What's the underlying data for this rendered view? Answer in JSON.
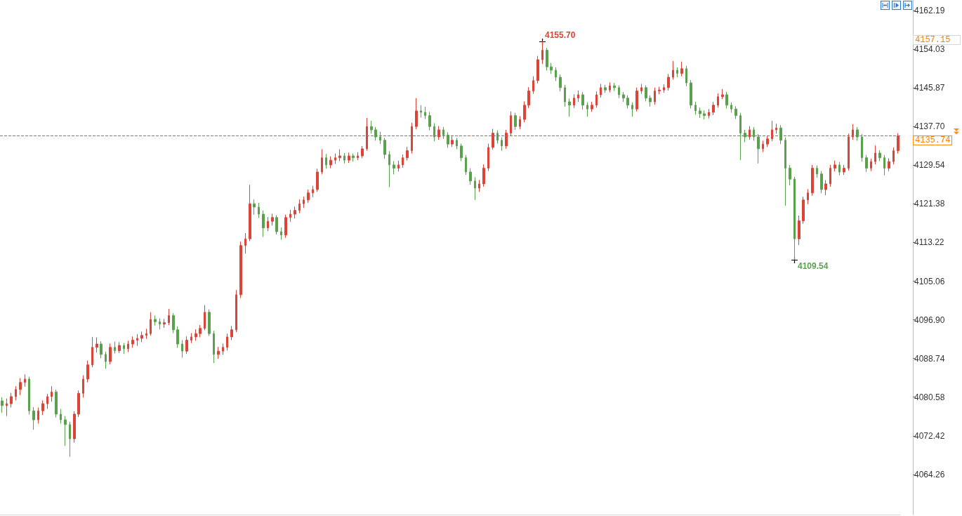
{
  "chart_data": {
    "type": "candlestick",
    "categories": [
      null,
      null,
      null,
      null,
      null,
      null,
      null,
      null,
      null,
      null,
      null,
      null,
      null,
      null,
      null,
      null,
      null,
      null,
      null,
      null,
      null,
      null,
      null,
      null,
      null,
      null,
      null,
      null,
      null,
      null,
      null,
      null,
      null,
      null,
      null,
      null,
      null,
      null,
      null,
      null,
      null,
      null,
      null,
      null,
      null,
      null,
      null,
      null,
      null,
      null,
      null,
      null,
      null,
      null,
      null,
      null,
      null,
      null,
      null,
      null,
      null,
      null,
      null,
      null,
      null,
      null,
      null,
      null,
      null,
      null,
      null,
      null,
      null,
      null,
      null,
      null,
      null,
      null,
      null,
      null,
      null,
      null,
      null,
      null,
      null,
      null,
      null,
      null,
      null,
      null,
      null,
      null,
      null,
      null,
      null,
      null,
      null,
      null,
      null,
      null,
      null,
      null,
      null,
      null,
      null,
      null,
      null,
      null,
      null,
      null,
      null,
      null,
      null,
      null,
      null,
      null,
      null,
      null,
      null,
      null,
      null,
      null,
      null,
      null,
      null,
      null,
      null,
      null,
      null,
      null,
      null,
      null,
      null,
      null,
      null,
      null,
      null,
      null,
      null,
      null,
      null,
      null,
      null,
      null,
      null,
      null,
      null,
      null,
      null,
      null,
      null,
      null,
      null,
      null,
      null,
      null,
      null,
      null,
      null,
      null,
      null,
      null,
      null,
      null,
      null,
      null,
      null,
      null,
      null,
      null,
      null,
      null,
      null,
      null,
      null,
      null,
      null,
      null,
      null,
      null,
      null,
      null,
      null,
      null,
      null,
      null,
      null,
      null,
      null,
      null,
      null,
      null,
      null,
      null,
      null,
      null,
      null,
      null,
      null,
      null
    ],
    "ohlc": [
      [
        4079.8,
        4080.6,
        4077.3,
        4078.8
      ],
      [
        4078.8,
        4080.3,
        4076.6,
        4079.2
      ],
      [
        4079.2,
        4081.5,
        4078.4,
        4080.7
      ],
      [
        4080.7,
        4082.9,
        4079.9,
        4082.2
      ],
      [
        4082.2,
        4084.6,
        4081.0,
        4083.7
      ],
      [
        4083.7,
        4085.4,
        4082.8,
        4084.4
      ],
      [
        4084.4,
        4084.9,
        4076.9,
        4077.7
      ],
      [
        4077.7,
        4078.5,
        4073.7,
        4075.8
      ],
      [
        4075.8,
        4078.4,
        4075.0,
        4077.7
      ],
      [
        4077.7,
        4079.9,
        4076.8,
        4079.2
      ],
      [
        4079.2,
        4081.3,
        4078.1,
        4080.7
      ],
      [
        4080.7,
        4082.9,
        4079.6,
        4081.7
      ],
      [
        4081.7,
        4082.2,
        4076.3,
        4077.0
      ],
      [
        4077.0,
        4078.1,
        4075.0,
        4075.8
      ],
      [
        4075.8,
        4076.6,
        4070.3,
        4074.8
      ],
      [
        4074.8,
        4075.4,
        4068.0,
        4071.8
      ],
      [
        4071.8,
        4077.6,
        4071.0,
        4077.0
      ],
      [
        4077.0,
        4082.0,
        4076.4,
        4081.4
      ],
      [
        4081.4,
        4085.2,
        4080.5,
        4084.4
      ],
      [
        4084.4,
        4088.3,
        4083.7,
        4087.4
      ],
      [
        4087.4,
        4093.3,
        4086.9,
        4091.1
      ],
      [
        4091.1,
        4093.2,
        4090.0,
        4091.8
      ],
      [
        4091.8,
        4092.4,
        4088.8,
        4089.6
      ],
      [
        4089.6,
        4090.2,
        4086.6,
        4088.1
      ],
      [
        4088.1,
        4091.9,
        4087.5,
        4091.1
      ],
      [
        4091.1,
        4092.3,
        4089.8,
        4090.4
      ],
      [
        4090.4,
        4092.2,
        4089.9,
        4091.5
      ],
      [
        4091.5,
        4092.0,
        4089.7,
        4090.8
      ],
      [
        4090.8,
        4092.5,
        4090.1,
        4091.8
      ],
      [
        4091.8,
        4093.4,
        4091.0,
        4092.6
      ],
      [
        4092.6,
        4093.9,
        4091.4,
        4093.0
      ],
      [
        4093.0,
        4094.4,
        4092.2,
        4093.6
      ],
      [
        4093.6,
        4095.0,
        4092.9,
        4094.0
      ],
      [
        4094.0,
        4098.5,
        4093.6,
        4097.0
      ],
      [
        4097.0,
        4097.8,
        4095.7,
        4096.5
      ],
      [
        4096.5,
        4097.2,
        4094.9,
        4096.0
      ],
      [
        4096.0,
        4097.1,
        4095.2,
        4096.3
      ],
      [
        4096.3,
        4099.2,
        4095.8,
        4097.8
      ],
      [
        4097.8,
        4098.3,
        4094.1,
        4094.8
      ],
      [
        4094.8,
        4095.5,
        4091.0,
        4091.8
      ],
      [
        4091.8,
        4092.6,
        4088.9,
        4090.3
      ],
      [
        4090.3,
        4093.4,
        4089.7,
        4092.6
      ],
      [
        4092.6,
        4094.1,
        4092.0,
        4093.3
      ],
      [
        4093.3,
        4094.9,
        4092.5,
        4094.0
      ],
      [
        4094.0,
        4095.8,
        4093.2,
        4095.1
      ],
      [
        4095.1,
        4100.0,
        4094.7,
        4098.5
      ],
      [
        4098.5,
        4099.1,
        4093.5,
        4094.0
      ],
      [
        4094.0,
        4094.6,
        4087.8,
        4089.6
      ],
      [
        4089.6,
        4091.2,
        4088.7,
        4090.3
      ],
      [
        4090.3,
        4091.9,
        4089.5,
        4091.1
      ],
      [
        4091.1,
        4094.0,
        4090.4,
        4093.3
      ],
      [
        4093.3,
        4095.6,
        4092.6,
        4094.8
      ],
      [
        4094.8,
        4103.2,
        4094.3,
        4102.2
      ],
      [
        4102.2,
        4113.4,
        4101.5,
        4112.6
      ],
      [
        4112.6,
        4115.2,
        4110.9,
        4114.0
      ],
      [
        4114.0,
        4125.4,
        4113.5,
        4121.4
      ],
      [
        4121.4,
        4122.3,
        4119.1,
        4120.7
      ],
      [
        4120.7,
        4121.6,
        4118.4,
        4119.2
      ],
      [
        4119.2,
        4120.0,
        4114.4,
        4116.3
      ],
      [
        4116.3,
        4118.6,
        4115.6,
        4117.7
      ],
      [
        4117.7,
        4119.3,
        4116.8,
        4118.5
      ],
      [
        4118.5,
        4119.0,
        4114.9,
        4115.5
      ],
      [
        4115.5,
        4116.4,
        4113.8,
        4114.8
      ],
      [
        4114.8,
        4119.1,
        4114.2,
        4118.5
      ],
      [
        4118.5,
        4120.1,
        4117.6,
        4119.2
      ],
      [
        4119.2,
        4120.8,
        4118.3,
        4120.0
      ],
      [
        4120.0,
        4122.3,
        4119.4,
        4121.4
      ],
      [
        4121.4,
        4122.9,
        4120.5,
        4122.2
      ],
      [
        4122.2,
        4124.4,
        4121.6,
        4123.7
      ],
      [
        4123.7,
        4125.2,
        4122.8,
        4124.4
      ],
      [
        4124.4,
        4128.8,
        4123.9,
        4128.1
      ],
      [
        4128.1,
        4132.9,
        4127.6,
        4131.1
      ],
      [
        4131.1,
        4131.9,
        4128.8,
        4129.6
      ],
      [
        4129.6,
        4131.4,
        4128.9,
        4130.6
      ],
      [
        4130.6,
        4132.0,
        4129.8,
        4131.1
      ],
      [
        4131.1,
        4132.9,
        4130.4,
        4131.5
      ],
      [
        4131.5,
        4132.1,
        4129.9,
        4130.6
      ],
      [
        4130.6,
        4132.2,
        4130.0,
        4131.5
      ],
      [
        4131.5,
        4132.0,
        4130.3,
        4131.1
      ],
      [
        4131.1,
        4132.3,
        4130.6,
        4131.5
      ],
      [
        4131.5,
        4133.6,
        4131.0,
        4133.0
      ],
      [
        4133.0,
        4139.5,
        4132.6,
        4137.7
      ],
      [
        4137.7,
        4138.9,
        4136.2,
        4137.0
      ],
      [
        4137.0,
        4137.6,
        4134.7,
        4135.5
      ],
      [
        4135.5,
        4136.6,
        4134.0,
        4134.8
      ],
      [
        4134.8,
        4135.3,
        4130.9,
        4131.8
      ],
      [
        4131.8,
        4132.5,
        4124.9,
        4129.6
      ],
      [
        4129.6,
        4130.4,
        4127.6,
        4128.9
      ],
      [
        4128.9,
        4130.5,
        4128.2,
        4129.6
      ],
      [
        4129.6,
        4131.8,
        4129.0,
        4131.1
      ],
      [
        4131.1,
        4133.4,
        4130.5,
        4132.6
      ],
      [
        4132.6,
        4138.5,
        4132.0,
        4137.7
      ],
      [
        4137.7,
        4143.7,
        4137.1,
        4141.0
      ],
      [
        4141.0,
        4142.2,
        4139.6,
        4140.7
      ],
      [
        4140.7,
        4141.9,
        4139.3,
        4140.0
      ],
      [
        4140.0,
        4140.8,
        4136.9,
        4137.7
      ],
      [
        4137.7,
        4138.4,
        4134.6,
        4135.5
      ],
      [
        4135.5,
        4137.8,
        4134.9,
        4137.0
      ],
      [
        4137.0,
        4137.6,
        4135.1,
        4135.9
      ],
      [
        4135.9,
        4136.5,
        4133.2,
        4134.0
      ],
      [
        4134.0,
        4135.6,
        4133.4,
        4134.8
      ],
      [
        4134.8,
        4135.3,
        4132.9,
        4133.6
      ],
      [
        4133.6,
        4134.1,
        4130.4,
        4131.1
      ],
      [
        4131.1,
        4131.7,
        4127.5,
        4128.1
      ],
      [
        4128.1,
        4128.9,
        4125.4,
        4126.2
      ],
      [
        4126.2,
        4127.0,
        4122.2,
        4124.7
      ],
      [
        4124.7,
        4126.4,
        4123.9,
        4125.6
      ],
      [
        4125.6,
        4129.7,
        4125.0,
        4128.9
      ],
      [
        4128.9,
        4134.1,
        4128.3,
        4133.3
      ],
      [
        4133.3,
        4137.2,
        4132.8,
        4136.3
      ],
      [
        4136.3,
        4136.9,
        4134.1,
        4134.8
      ],
      [
        4134.8,
        4135.4,
        4132.6,
        4133.6
      ],
      [
        4133.6,
        4137.0,
        4133.0,
        4136.3
      ],
      [
        4136.3,
        4140.9,
        4135.8,
        4140.0
      ],
      [
        4140.0,
        4140.6,
        4137.0,
        4137.7
      ],
      [
        4137.7,
        4139.9,
        4137.1,
        4139.2
      ],
      [
        4139.2,
        4143.0,
        4138.6,
        4142.2
      ],
      [
        4142.2,
        4146.0,
        4141.6,
        4145.2
      ],
      [
        4145.2,
        4148.3,
        4144.6,
        4147.4
      ],
      [
        4147.4,
        4152.6,
        4146.8,
        4151.8
      ],
      [
        4151.8,
        4155.7,
        4150.9,
        4153.8
      ],
      [
        4153.8,
        4154.3,
        4149.5,
        4150.3
      ],
      [
        4150.3,
        4151.1,
        4148.8,
        4149.6
      ],
      [
        4149.6,
        4150.2,
        4147.3,
        4148.1
      ],
      [
        4148.1,
        4148.7,
        4145.1,
        4145.9
      ],
      [
        4145.9,
        4146.5,
        4141.9,
        4142.9
      ],
      [
        4142.9,
        4143.6,
        4139.8,
        4142.2
      ],
      [
        4142.2,
        4144.5,
        4141.6,
        4143.7
      ],
      [
        4143.7,
        4145.3,
        4142.9,
        4144.4
      ],
      [
        4144.4,
        4145.0,
        4141.3,
        4142.2
      ],
      [
        4142.2,
        4142.8,
        4139.8,
        4141.4
      ],
      [
        4141.4,
        4142.9,
        4140.8,
        4142.2
      ],
      [
        4142.2,
        4145.1,
        4141.7,
        4144.4
      ],
      [
        4144.4,
        4146.7,
        4143.8,
        4145.9
      ],
      [
        4145.9,
        4146.5,
        4144.8,
        4145.4
      ],
      [
        4145.4,
        4147.0,
        4144.9,
        4146.3
      ],
      [
        4146.3,
        4146.9,
        4145.2,
        4145.9
      ],
      [
        4145.9,
        4146.4,
        4143.7,
        4144.4
      ],
      [
        4144.4,
        4145.0,
        4142.9,
        4143.7
      ],
      [
        4143.7,
        4144.3,
        4141.5,
        4142.2
      ],
      [
        4142.2,
        4142.8,
        4139.8,
        4141.4
      ],
      [
        4141.4,
        4145.9,
        4140.9,
        4145.2
      ],
      [
        4145.2,
        4146.7,
        4144.6,
        4145.9
      ],
      [
        4145.9,
        4146.4,
        4143.0,
        4143.7
      ],
      [
        4143.7,
        4144.3,
        4141.9,
        4142.9
      ],
      [
        4142.9,
        4145.9,
        4142.3,
        4145.2
      ],
      [
        4145.2,
        4146.1,
        4144.5,
        4145.4
      ],
      [
        4145.4,
        4146.6,
        4144.8,
        4145.9
      ],
      [
        4145.9,
        4148.8,
        4145.3,
        4148.1
      ],
      [
        4148.1,
        4151.5,
        4147.6,
        4149.6
      ],
      [
        4149.6,
        4150.2,
        4148.1,
        4148.9
      ],
      [
        4148.9,
        4151.4,
        4148.3,
        4149.9
      ],
      [
        4149.9,
        4150.5,
        4146.2,
        4146.9
      ],
      [
        4146.9,
        4147.5,
        4141.5,
        4142.2
      ],
      [
        4142.2,
        4142.9,
        4140.2,
        4141.0
      ],
      [
        4141.0,
        4141.7,
        4139.5,
        4140.4
      ],
      [
        4140.4,
        4141.1,
        4139.2,
        4140.0
      ],
      [
        4140.0,
        4141.4,
        4139.4,
        4140.7
      ],
      [
        4140.7,
        4142.9,
        4140.1,
        4142.2
      ],
      [
        4142.2,
        4144.7,
        4141.7,
        4144.0
      ],
      [
        4144.0,
        4145.6,
        4143.5,
        4144.4
      ],
      [
        4144.4,
        4145.0,
        4141.5,
        4142.2
      ],
      [
        4142.2,
        4142.8,
        4140.6,
        4141.4
      ],
      [
        4141.4,
        4142.0,
        4139.3,
        4140.0
      ],
      [
        4140.0,
        4140.6,
        4130.6,
        4136.3
      ],
      [
        4136.3,
        4137.0,
        4134.4,
        4135.5
      ],
      [
        4135.5,
        4137.8,
        4134.9,
        4137.0
      ],
      [
        4137.0,
        4137.6,
        4134.7,
        4135.5
      ],
      [
        4135.5,
        4136.1,
        4129.9,
        4133.0
      ],
      [
        4133.0,
        4134.7,
        4132.3,
        4134.0
      ],
      [
        4134.0,
        4135.8,
        4133.4,
        4135.1
      ],
      [
        4135.1,
        4138.9,
        4134.6,
        4137.0
      ],
      [
        4137.0,
        4138.3,
        4136.2,
        4137.4
      ],
      [
        4137.4,
        4138.0,
        4134.0,
        4134.8
      ],
      [
        4134.8,
        4135.4,
        4121.0,
        4128.9
      ],
      [
        4128.9,
        4129.6,
        4125.3,
        4126.6
      ],
      [
        4126.6,
        4127.1,
        4109.54,
        4114.0
      ],
      [
        4114.0,
        4118.9,
        4112.7,
        4117.8
      ],
      [
        4117.8,
        4122.9,
        4117.2,
        4122.2
      ],
      [
        4122.2,
        4124.5,
        4121.3,
        4123.7
      ],
      [
        4123.7,
        4129.6,
        4123.1,
        4128.9
      ],
      [
        4128.9,
        4129.5,
        4126.9,
        4127.7
      ],
      [
        4127.7,
        4128.3,
        4123.6,
        4124.4
      ],
      [
        4124.4,
        4126.4,
        4123.2,
        4125.6
      ],
      [
        4125.6,
        4129.6,
        4125.0,
        4128.9
      ],
      [
        4128.9,
        4130.5,
        4128.2,
        4129.6
      ],
      [
        4129.6,
        4130.2,
        4127.4,
        4128.1
      ],
      [
        4128.1,
        4129.6,
        4127.5,
        4128.9
      ],
      [
        4128.9,
        4136.2,
        4128.4,
        4135.5
      ],
      [
        4135.5,
        4138.2,
        4134.9,
        4137.0
      ],
      [
        4137.0,
        4137.6,
        4134.7,
        4135.5
      ],
      [
        4135.5,
        4136.1,
        4130.3,
        4131.1
      ],
      [
        4131.1,
        4131.7,
        4128.1,
        4128.9
      ],
      [
        4128.9,
        4130.9,
        4128.3,
        4130.3
      ],
      [
        4130.3,
        4133.7,
        4129.7,
        4132.1
      ],
      [
        4132.1,
        4132.7,
        4130.4,
        4131.1
      ],
      [
        4131.1,
        4131.7,
        4127.4,
        4128.9
      ],
      [
        4128.9,
        4131.0,
        4128.3,
        4130.3
      ],
      [
        4130.3,
        4133.3,
        4129.7,
        4132.6
      ],
      [
        4132.6,
        4136.3,
        4132.0,
        4135.74
      ]
    ],
    "value_labels": [
      null,
      null,
      null,
      null,
      null,
      null,
      null,
      null,
      null,
      null,
      null,
      null,
      null,
      null,
      null,
      null,
      null,
      null,
      null,
      null,
      null,
      null,
      null,
      null,
      null,
      null,
      null,
      null,
      null,
      null,
      null,
      null,
      null,
      null,
      null,
      null,
      null,
      null,
      null,
      null,
      null,
      null,
      null,
      null,
      null,
      null,
      null,
      null,
      null,
      null,
      null,
      null,
      null,
      null,
      null,
      null,
      null,
      null,
      null,
      null,
      null,
      null,
      null,
      null,
      null,
      null,
      null,
      null,
      null,
      null,
      null,
      null,
      null,
      null,
      null,
      null,
      null,
      null,
      null,
      null,
      null,
      null,
      null,
      null,
      null,
      null,
      null,
      null,
      null,
      null,
      null,
      null,
      null,
      null,
      null,
      null,
      null,
      null,
      null,
      null,
      null,
      null,
      null,
      null,
      null,
      null,
      null,
      null,
      null,
      null,
      null,
      null,
      null,
      null,
      null,
      null,
      null,
      null,
      null,
      null,
      "4155.70",
      null,
      null,
      null,
      null,
      null,
      null,
      null,
      null,
      null,
      null,
      null,
      null,
      null,
      null,
      null,
      null,
      null,
      null,
      null,
      null,
      null,
      null,
      null,
      null,
      null,
      null,
      null,
      null,
      null,
      null,
      null,
      null,
      null,
      null,
      null,
      null,
      null,
      null,
      null,
      null,
      null,
      null,
      null,
      null,
      null,
      null,
      null,
      null,
      null,
      null,
      null,
      null,
      null,
      null,
      null,
      "4109.54",
      null,
      null,
      null,
      null,
      null,
      null,
      null,
      null,
      null,
      null,
      null,
      null,
      null,
      null,
      null,
      null,
      null,
      null,
      null,
      null,
      null,
      null,
      null
    ],
    "colors": [
      "#5aa14e",
      "#dc4437",
      "#dc4437",
      "#dc4437",
      "#dc4437",
      "#dc4437",
      "#5aa14e",
      "#5aa14e",
      "#dc4437",
      "#dc4437",
      "#dc4437",
      "#dc4437",
      "#5aa14e",
      "#5aa14e",
      "#5aa14e",
      "#5aa14e",
      "#dc4437",
      "#dc4437",
      "#dc4437",
      "#dc4437",
      "#dc4437",
      "#dc4437",
      "#5aa14e",
      "#5aa14e",
      "#dc4437",
      "#5aa14e",
      "#dc4437",
      "#5aa14e",
      "#dc4437",
      "#dc4437",
      "#dc4437",
      "#dc4437",
      "#dc4437",
      "#dc4437",
      "#5aa14e",
      "#5aa14e",
      "#dc4437",
      "#dc4437",
      "#5aa14e",
      "#5aa14e",
      "#5aa14e",
      "#dc4437",
      "#dc4437",
      "#dc4437",
      "#dc4437",
      "#dc4437",
      "#5aa14e",
      "#5aa14e",
      "#dc4437",
      "#dc4437",
      "#dc4437",
      "#dc4437",
      "#dc4437",
      "#dc4437",
      "#dc4437",
      "#dc4437",
      "#5aa14e",
      "#5aa14e",
      "#5aa14e",
      "#dc4437",
      "#dc4437",
      "#5aa14e",
      "#5aa14e",
      "#dc4437",
      "#dc4437",
      "#dc4437",
      "#dc4437",
      "#dc4437",
      "#dc4437",
      "#dc4437",
      "#dc4437",
      "#dc4437",
      "#5aa14e",
      "#dc4437",
      "#dc4437",
      "#dc4437",
      "#5aa14e",
      "#dc4437",
      "#5aa14e",
      "#dc4437",
      "#dc4437",
      "#dc4437",
      "#5aa14e",
      "#5aa14e",
      "#5aa14e",
      "#5aa14e",
      "#5aa14e",
      "#5aa14e",
      "#dc4437",
      "#dc4437",
      "#dc4437",
      "#dc4437",
      "#dc4437",
      "#5aa14e",
      "#5aa14e",
      "#5aa14e",
      "#5aa14e",
      "#dc4437",
      "#5aa14e",
      "#5aa14e",
      "#dc4437",
      "#5aa14e",
      "#5aa14e",
      "#5aa14e",
      "#5aa14e",
      "#5aa14e",
      "#dc4437",
      "#dc4437",
      "#dc4437",
      "#dc4437",
      "#5aa14e",
      "#5aa14e",
      "#dc4437",
      "#dc4437",
      "#5aa14e",
      "#dc4437",
      "#dc4437",
      "#dc4437",
      "#dc4437",
      "#dc4437",
      "#dc4437",
      "#5aa14e",
      "#5aa14e",
      "#5aa14e",
      "#5aa14e",
      "#5aa14e",
      "#5aa14e",
      "#dc4437",
      "#dc4437",
      "#5aa14e",
      "#5aa14e",
      "#dc4437",
      "#dc4437",
      "#dc4437",
      "#5aa14e",
      "#dc4437",
      "#5aa14e",
      "#5aa14e",
      "#5aa14e",
      "#5aa14e",
      "#5aa14e",
      "#dc4437",
      "#dc4437",
      "#5aa14e",
      "#5aa14e",
      "#dc4437",
      "#dc4437",
      "#dc4437",
      "#dc4437",
      "#dc4437",
      "#5aa14e",
      "#dc4437",
      "#5aa14e",
      "#5aa14e",
      "#5aa14e",
      "#5aa14e",
      "#5aa14e",
      "#dc4437",
      "#dc4437",
      "#dc4437",
      "#dc4437",
      "#5aa14e",
      "#5aa14e",
      "#5aa14e",
      "#5aa14e",
      "#5aa14e",
      "#dc4437",
      "#5aa14e",
      "#5aa14e",
      "#dc4437",
      "#dc4437",
      "#dc4437",
      "#dc4437",
      "#5aa14e",
      "#5aa14e",
      "#5aa14e",
      "#5aa14e",
      "#dc4437",
      "#dc4437",
      "#dc4437",
      "#dc4437",
      "#5aa14e",
      "#5aa14e",
      "#dc4437",
      "#dc4437",
      "#dc4437",
      "#5aa14e",
      "#dc4437",
      "#dc4437",
      "#dc4437",
      "#5aa14e",
      "#5aa14e",
      "#5aa14e",
      "#dc4437",
      "#dc4437",
      "#5aa14e",
      "#5aa14e",
      "#dc4437",
      "#dc4437",
      "#dc4437"
    ],
    "ylim": [
      4055.8,
      4164.4
    ],
    "yticks": [
      4162.19,
      4154.03,
      4145.87,
      {
        "value": 4137.7,
        "label": "4137.70"
      },
      4129.54,
      4121.38,
      4113.22,
      4105.06,
      {
        "value": 4096.9,
        "label": "4096.90"
      },
      4088.74,
      4080.58,
      4072.42,
      4064.26
    ],
    "tick_labels": "y",
    "ref_lines": [
      {
        "axis": "y",
        "value": 4135.74,
        "label": "4135.74",
        "color": "#1e90ff",
        "line_style": "dashed"
      }
    ],
    "annotations": [
      "4157.15"
    ]
  }
}
